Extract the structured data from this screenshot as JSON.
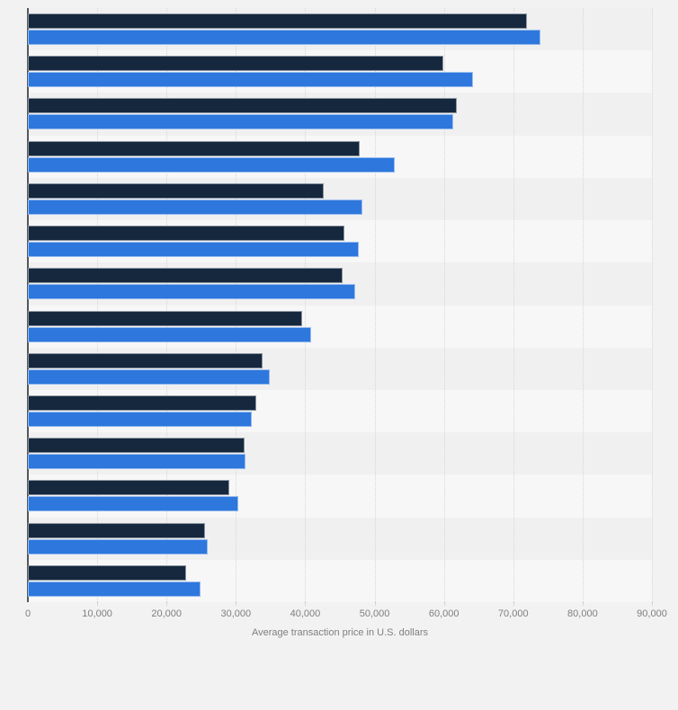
{
  "chart_data": {
    "type": "bar",
    "orientation": "horizontal",
    "title": "",
    "xlabel": "Average transaction price in U.S. dollars",
    "ylabel": "",
    "xlim": [
      0,
      90000
    ],
    "x_tick_labels": [
      "0",
      "10,000",
      "20,000",
      "30,000",
      "40,000",
      "50,000",
      "60,000",
      "70,000",
      "80,000",
      "90,000"
    ],
    "grid": "vertical-dotted",
    "legend_position": "none",
    "category_axis_labels_visible": false,
    "num_groups": 14,
    "series": [
      {
        "name": "series-dark-navy",
        "color": "#16283e",
        "values": [
          72000,
          59900,
          61800,
          47900,
          42700,
          45600,
          45400,
          39600,
          33800,
          33000,
          31200,
          29000,
          25600,
          22800
        ]
      },
      {
        "name": "series-blue",
        "color": "#2d77dd",
        "values": [
          73900,
          64200,
          61300,
          52900,
          48200,
          47700,
          47200,
          40800,
          34900,
          32300,
          31400,
          30400,
          26000,
          24900
        ]
      }
    ]
  },
  "colors": {
    "page_bg": "#f2f2f2",
    "band_odd": "#f0f0f1",
    "band_even": "#f7f7f8",
    "gridline": "#d7d7d9",
    "axis_line": "#54585e",
    "tick_text": "#7f7f7f",
    "bar_dark": "#16283e",
    "bar_blue": "#2d77dd"
  }
}
